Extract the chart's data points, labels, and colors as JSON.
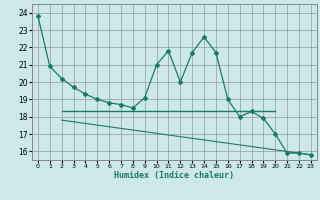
{
  "xlabel": "Humidex (Indice chaleur)",
  "bg_color": "#cce8e8",
  "grid_color": "#aaaaaa",
  "line_color": "#1a7a6a",
  "xlim": [
    -0.5,
    23.5
  ],
  "ylim": [
    15.5,
    24.5
  ],
  "yticks": [
    16,
    17,
    18,
    19,
    20,
    21,
    22,
    23,
    24
  ],
  "xticks": [
    0,
    1,
    2,
    3,
    4,
    5,
    6,
    7,
    8,
    9,
    10,
    11,
    12,
    13,
    14,
    15,
    16,
    17,
    18,
    19,
    20,
    21,
    22,
    23
  ],
  "line1_x": [
    0,
    1,
    2,
    3,
    4,
    5,
    6,
    7,
    8,
    9,
    10,
    11,
    12,
    13,
    14,
    15,
    16,
    17,
    18,
    19,
    20,
    21,
    22,
    23
  ],
  "line1_y": [
    23.8,
    20.9,
    20.2,
    19.7,
    19.3,
    19.0,
    18.8,
    18.7,
    18.5,
    19.1,
    21.0,
    21.8,
    20.0,
    21.7,
    22.6,
    21.7,
    19.0,
    18.0,
    18.3,
    17.9,
    17.0,
    15.9,
    15.9,
    15.8
  ],
  "line2_x": [
    2,
    20
  ],
  "line2_y": [
    18.3,
    18.3
  ],
  "line3_x": [
    2,
    23
  ],
  "line3_y": [
    17.8,
    15.8
  ]
}
